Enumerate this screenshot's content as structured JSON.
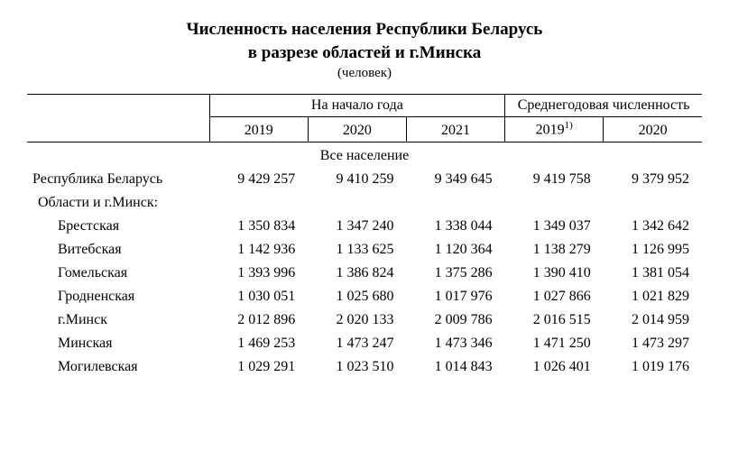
{
  "title": {
    "line1": "Численность населения Республики Беларусь",
    "line2": "в разрезе областей и г.Минска",
    "unit": "(человек)"
  },
  "header": {
    "group1": "На начало года",
    "group2": "Среднегодовая численность",
    "years_start": [
      "2019",
      "2020",
      "2021"
    ],
    "year_avg1": "2019",
    "year_avg1_sup": "1)",
    "year_avg2": "2020"
  },
  "section_label": "Все население",
  "rows": [
    {
      "label": "Республика Беларусь",
      "indent": 0,
      "vals": [
        "9 429 257",
        "9 410 259",
        "9 349 645",
        "9 419 758",
        "9 379 952"
      ]
    },
    {
      "label": "Области и г.Минск:",
      "indent": 1,
      "vals": [
        "",
        "",
        "",
        "",
        ""
      ]
    },
    {
      "label": "Брестская",
      "indent": 2,
      "vals": [
        "1 350 834",
        "1 347 240",
        "1 338 044",
        "1 349 037",
        "1 342 642"
      ]
    },
    {
      "label": "Витебская",
      "indent": 2,
      "vals": [
        "1 142 936",
        "1 133 625",
        "1 120 364",
        "1 138 279",
        "1 126 995"
      ]
    },
    {
      "label": "Гомельская",
      "indent": 2,
      "vals": [
        "1 393 996",
        "1 386 824",
        "1 375 286",
        "1 390 410",
        "1 381 054"
      ]
    },
    {
      "label": "Гродненская",
      "indent": 2,
      "vals": [
        "1 030 051",
        "1 025 680",
        "1 017 976",
        "1 027 866",
        "1 021 829"
      ]
    },
    {
      "label": "г.Минск",
      "indent": 2,
      "vals": [
        "2 012 896",
        "2 020 133",
        "2 009 786",
        "2 016 515",
        "2 014 959"
      ]
    },
    {
      "label": "Минская",
      "indent": 2,
      "vals": [
        "1 469 253",
        "1 473 247",
        "1 473 346",
        "1 471 250",
        "1 473 297"
      ]
    },
    {
      "label": "Могилевская",
      "indent": 2,
      "vals": [
        "1 029 291",
        "1 023 510",
        "1 014 843",
        "1 026 401",
        "1 019 176"
      ]
    }
  ]
}
